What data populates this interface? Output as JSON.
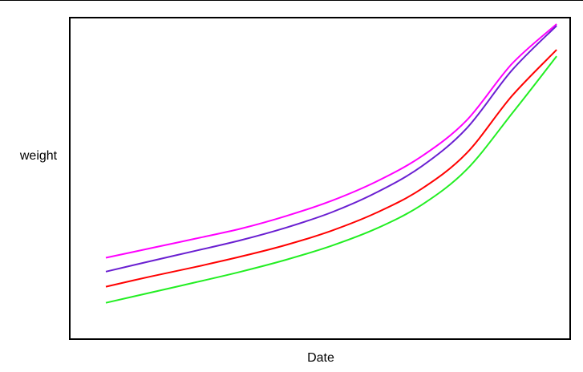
{
  "chart_data": {
    "type": "line",
    "xlabel": "Date",
    "ylabel": "weight",
    "grid": false,
    "legend": "none",
    "ticks_shown": false,
    "x": [
      0,
      0.1,
      0.2,
      0.3,
      0.4,
      0.5,
      0.6,
      0.7,
      0.8,
      0.9,
      1.0
    ],
    "series": [
      {
        "color": "#ff00ff",
        "values": [
          0.253,
          0.283,
          0.313,
          0.344,
          0.383,
          0.43,
          0.49,
          0.568,
          0.68,
          0.855,
          0.98
        ]
      },
      {
        "color": "#6a1fd1",
        "values": [
          0.21,
          0.243,
          0.275,
          0.308,
          0.347,
          0.394,
          0.456,
          0.537,
          0.655,
          0.835,
          0.975
        ]
      },
      {
        "color": "#ff0000",
        "values": [
          0.163,
          0.195,
          0.225,
          0.257,
          0.293,
          0.337,
          0.393,
          0.467,
          0.578,
          0.755,
          0.9
        ]
      },
      {
        "color": "#22ee22",
        "values": [
          0.113,
          0.145,
          0.177,
          0.21,
          0.247,
          0.29,
          0.344,
          0.417,
          0.527,
          0.7,
          0.88
        ]
      }
    ],
    "xlim": [
      -0.08,
      1.03
    ],
    "ylim": [
      0,
      1
    ]
  }
}
